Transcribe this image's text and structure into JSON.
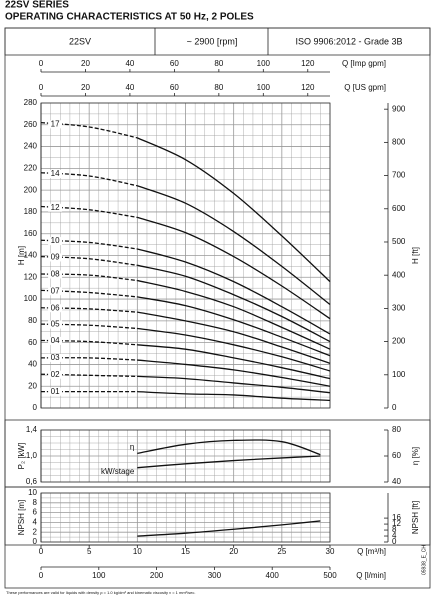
{
  "title": "22SV SERIES",
  "subtitle": "OPERATING CHARACTERISTICS AT 50 Hz, 2 POLES",
  "header": [
    "22SV",
    "~ 2900 [rpm]",
    "ISO 9906:2012 - Grade 3B"
  ],
  "footnote": "These performances are valid for liquids with density ρ = 1.0 kg/dm³ and kinematic viscosity ν = 1 mm²/sec.",
  "code": "05938_E_CH",
  "q_axes": [
    {
      "label": "Q [Imp gpm]",
      "xlim": [
        0,
        130
      ],
      "xticks": [
        0,
        20,
        40,
        60,
        80,
        100,
        120
      ]
    },
    {
      "label": "Q [US gpm]",
      "xlim": [
        0,
        130
      ],
      "xticks": [
        0,
        20,
        40,
        60,
        80,
        100,
        120
      ]
    },
    {
      "label": "Q [m³/h]",
      "xlim": [
        0,
        30
      ],
      "xticks": [
        0,
        5,
        10,
        15,
        20,
        25,
        30
      ]
    },
    {
      "label": "Q [l/min]",
      "xlim": [
        0,
        500
      ],
      "xticks": [
        0,
        100,
        200,
        300,
        400,
        500
      ]
    }
  ],
  "chart_data": [
    {
      "type": "line",
      "ylabel": "H [m]",
      "y2label": "H [ft]",
      "ylim": [
        0,
        280
      ],
      "yticks": [
        0,
        20,
        40,
        60,
        80,
        100,
        120,
        140,
        160,
        180,
        200,
        220,
        240,
        260,
        280
      ],
      "y2lim": [
        0,
        918.6
      ],
      "y2ticks": [
        0,
        100,
        200,
        300,
        400,
        500,
        600,
        700,
        800,
        900
      ],
      "color": "#111111",
      "x": [
        0,
        5,
        10,
        15,
        20,
        25,
        30
      ],
      "series": [
        {
          "name": "17",
          "values": [
            262,
            258,
            248,
            228,
            197,
            158,
            116
          ]
        },
        {
          "name": "14",
          "values": [
            216,
            213,
            204,
            188,
            162,
            130,
            95
          ]
        },
        {
          "name": "12",
          "values": [
            185,
            182,
            175,
            161,
            139,
            112,
            82
          ]
        },
        {
          "name": "10",
          "values": [
            154,
            152,
            146,
            134,
            116,
            93,
            68
          ]
        },
        {
          "name": "09",
          "values": [
            139,
            137,
            131,
            121,
            104,
            84,
            61
          ]
        },
        {
          "name": "08",
          "values": [
            123,
            122,
            117,
            107,
            93,
            74,
            54
          ]
        },
        {
          "name": "07",
          "values": [
            108,
            106,
            102,
            94,
            81,
            65,
            48
          ]
        },
        {
          "name": "06",
          "values": [
            92,
            91,
            88,
            80,
            70,
            56,
            41
          ]
        },
        {
          "name": "05",
          "values": [
            77,
            76,
            73,
            67,
            58,
            47,
            34
          ]
        },
        {
          "name": "04",
          "values": [
            62,
            61,
            58,
            54,
            46,
            37,
            27
          ]
        },
        {
          "name": "03",
          "values": [
            46,
            46,
            44,
            40,
            35,
            28,
            20
          ]
        },
        {
          "name": "02",
          "values": [
            31,
            30,
            29,
            27,
            23,
            19,
            14
          ]
        },
        {
          "name": "01",
          "values": [
            15,
            15,
            15,
            13,
            12,
            9,
            7
          ]
        }
      ]
    },
    {
      "type": "line",
      "ylabel": "P₂ [kW]",
      "y2label": "η [%]",
      "ylim": [
        0.6,
        1.4
      ],
      "yticks": [
        {
          "value": 0.6,
          "label": "0,6"
        },
        {
          "value": 1.0,
          "label": "1,0"
        },
        {
          "value": 1.4,
          "label": "1,4"
        }
      ],
      "y2lim": [
        40,
        80
      ],
      "y2ticks": [
        40,
        60,
        80
      ],
      "color": "#111111",
      "x": [
        10,
        15,
        20,
        25,
        29
      ],
      "series": [
        {
          "name": "η",
          "axis": "y2",
          "values": [
            62,
            69,
            72,
            71,
            61
          ]
        },
        {
          "name": "kW/stage",
          "values": [
            0.82,
            0.88,
            0.93,
            0.97,
            1.0
          ]
        }
      ]
    },
    {
      "type": "line",
      "ylabel": "NPSH [m]",
      "y2label": "NPSH [ft]",
      "ylim": [
        0,
        10
      ],
      "yticks": [
        0,
        2,
        4,
        6,
        8,
        10
      ],
      "y2lim": [
        0,
        32.8
      ],
      "y2ticks": [
        0,
        4,
        8,
        12,
        16
      ],
      "color": "#111111",
      "x": [
        10,
        15,
        20,
        25,
        29
      ],
      "series": [
        {
          "values": [
            1.2,
            1.8,
            2.6,
            3.5,
            4.3
          ]
        }
      ]
    }
  ]
}
